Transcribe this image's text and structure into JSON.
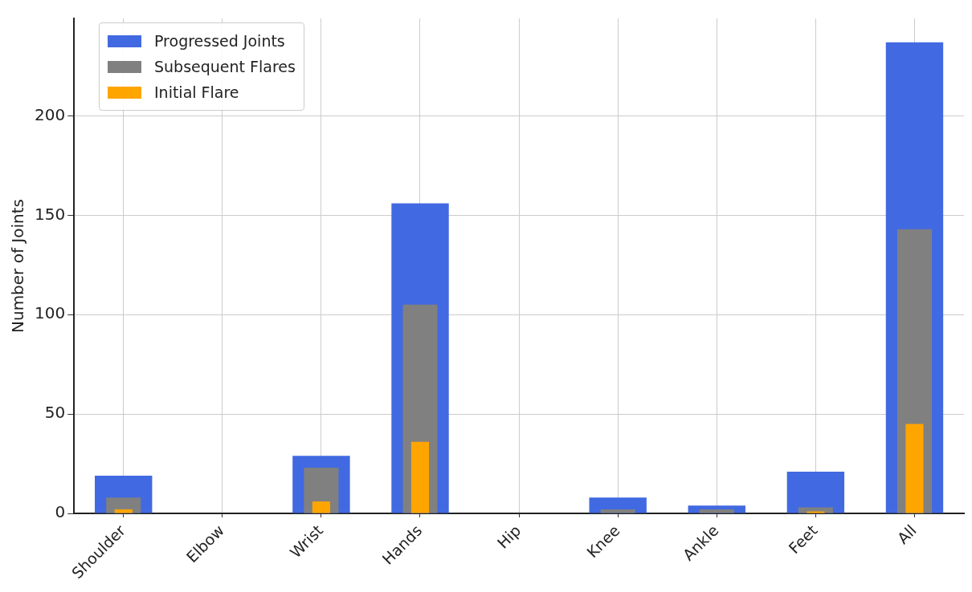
{
  "chart_data": {
    "type": "bar",
    "ylabel": "Number of Joints",
    "categories": [
      "Shoulder",
      "Elbow",
      "Wrist",
      "Hands",
      "Hip",
      "Knee",
      "Ankle",
      "Feet",
      "All"
    ],
    "series": [
      {
        "name": "Progressed Joints",
        "color": "#4169e1",
        "values": [
          19,
          0,
          29,
          156,
          0,
          8,
          4,
          21,
          237
        ]
      },
      {
        "name": "Subsequent Flares",
        "color": "#808080",
        "values": [
          8,
          0,
          23,
          105,
          0,
          2,
          2,
          3,
          143
        ]
      },
      {
        "name": "Initial Flare",
        "color": "#ffa500",
        "values": [
          2,
          0,
          6,
          36,
          0,
          0,
          0,
          1,
          45
        ]
      }
    ],
    "ylim": [
      0,
      249
    ],
    "yticks": [
      0,
      50,
      100,
      150,
      200
    ],
    "grid": true,
    "legend": "top left"
  }
}
